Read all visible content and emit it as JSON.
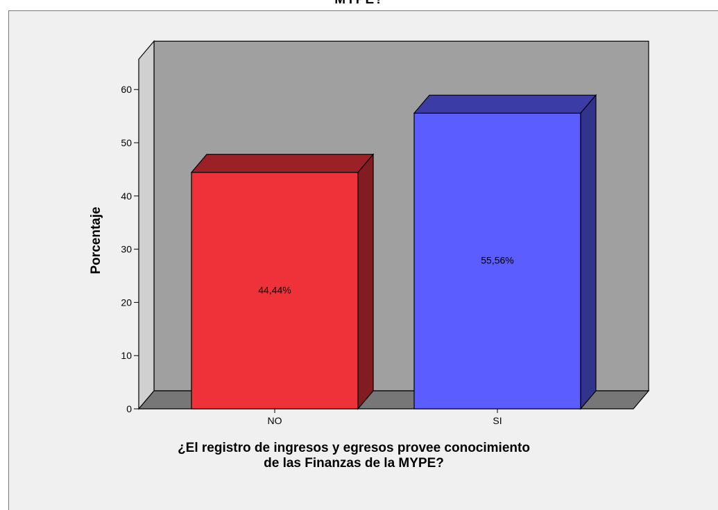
{
  "chart_data": {
    "type": "bar",
    "title": "MYPE?",
    "categories": [
      "NO",
      "SI"
    ],
    "values": [
      44.44,
      55.56
    ],
    "data_labels": [
      "44,44%",
      "55,56%"
    ],
    "colors": [
      "#ef323a",
      "#5b5dff"
    ],
    "ylabel": "Porcentaje",
    "xlabel_lines": [
      "¿El registro de ingresos y egresos provee conocimiento",
      "de las Finanzas de la MYPE?"
    ],
    "yticks": [
      "0",
      "10",
      "20",
      "30",
      "40",
      "50",
      "60"
    ],
    "ylim": [
      0,
      65
    ],
    "style": "3d",
    "grid": false
  }
}
